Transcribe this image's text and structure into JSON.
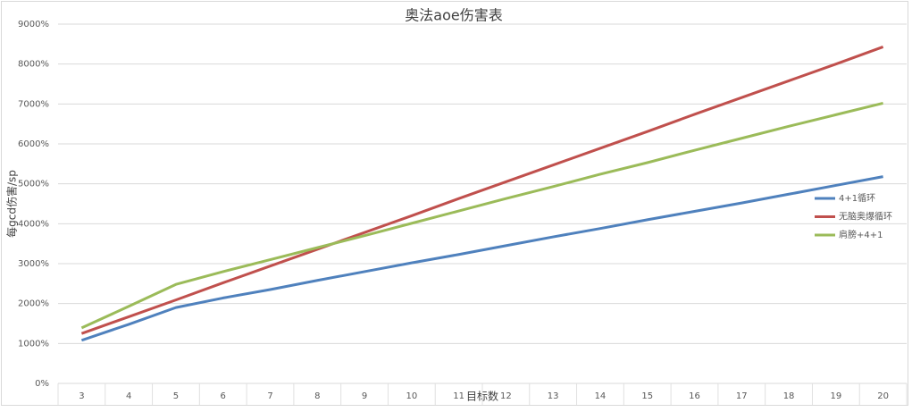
{
  "chart_data": {
    "type": "line",
    "title": "奥法aoe伤害表",
    "x_label": "目标数",
    "y_label": "每gcd伤害/sp",
    "categories": [
      "3",
      "4",
      "5",
      "6",
      "7",
      "8",
      "9",
      "10",
      "11",
      "12",
      "13",
      "14",
      "15",
      "16",
      "17",
      "18",
      "19",
      "20"
    ],
    "series": [
      {
        "name": "4+1循环",
        "color": "#4f81bd",
        "values": [
          1080,
          1480,
          1900,
          2140,
          2350,
          2580,
          2800,
          3020,
          3230,
          3450,
          3670,
          3880,
          4100,
          4310,
          4520,
          4740,
          4960,
          5180
        ]
      },
      {
        "name": "无脑奥爆循环",
        "color": "#c0504d",
        "values": [
          1250,
          1670,
          2090,
          2520,
          2940,
          3360,
          3780,
          4200,
          4630,
          5050,
          5470,
          5890,
          6310,
          6740,
          7160,
          7580,
          8000,
          8430
        ]
      },
      {
        "name": "肩膀+4+1",
        "color": "#9bbb59",
        "values": [
          1390,
          1930,
          2480,
          2800,
          3100,
          3400,
          3700,
          4010,
          4320,
          4630,
          4930,
          5240,
          5530,
          5840,
          6140,
          6440,
          6730,
          7020
        ]
      }
    ],
    "ylim": [
      0,
      9000
    ],
    "yticks": [
      {
        "value": 0,
        "label": "0%"
      },
      {
        "value": 1000,
        "label": "1000%"
      },
      {
        "value": 2000,
        "label": "2000%"
      },
      {
        "value": 3000,
        "label": "3000%"
      },
      {
        "value": 4000,
        "label": "4000%"
      },
      {
        "value": 5000,
        "label": "5000%"
      },
      {
        "value": 6000,
        "label": "6000%"
      },
      {
        "value": 7000,
        "label": "7000%"
      },
      {
        "value": 8000,
        "label": "8000%"
      },
      {
        "value": 9000,
        "label": "9000%"
      }
    ],
    "grid": true,
    "legend": "right"
  }
}
